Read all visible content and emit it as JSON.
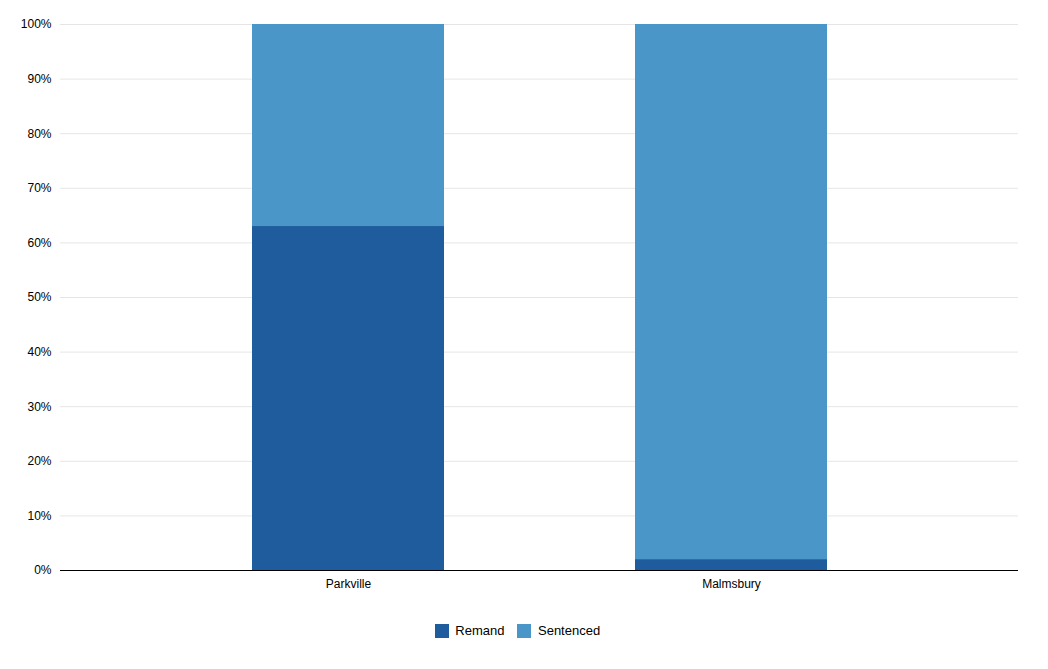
{
  "chart_data": {
    "type": "bar",
    "stacked": true,
    "categories": [
      "Parkville",
      "Malmsbury"
    ],
    "series": [
      {
        "name": "Remand",
        "color": "#1F5C9E",
        "values": [
          0.63,
          0.02
        ]
      },
      {
        "name": "Sentenced",
        "color": "#4B96C8",
        "values": [
          0.37,
          0.98
        ]
      }
    ],
    "ylim": [
      0.0,
      1.0
    ],
    "yticks": [
      {
        "value": 0.0,
        "label": "0%"
      },
      {
        "value": 0.1,
        "label": "10%"
      },
      {
        "value": 0.2,
        "label": "20%"
      },
      {
        "value": 0.3,
        "label": "30%"
      },
      {
        "value": 0.4,
        "label": "40%"
      },
      {
        "value": 0.5,
        "label": "50%"
      },
      {
        "value": 0.6,
        "label": "60%"
      },
      {
        "value": 0.7,
        "label": "70%"
      },
      {
        "value": 0.8,
        "label": "80%"
      },
      {
        "value": 0.9,
        "label": "90%"
      },
      {
        "value": 1.0,
        "label": "100%"
      }
    ],
    "grid": true,
    "legend": "bottom"
  }
}
